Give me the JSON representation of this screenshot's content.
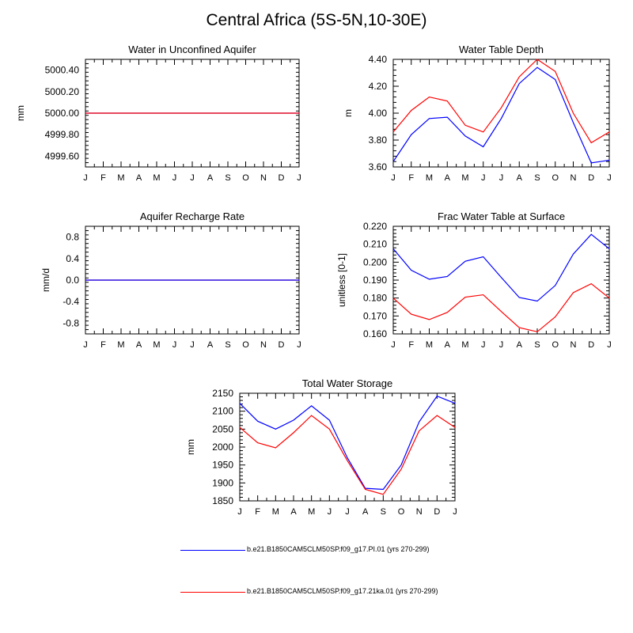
{
  "figure": {
    "title": "Central Africa (5S-5N,10-30E)"
  },
  "legend": [
    {
      "label": "b.e21.B1850CAM5CLM50SP.f09_g17.PI.01 (yrs 270-299)",
      "color": "#0000ff"
    },
    {
      "label": "b.e21.B1850CAM5CLM50SP.f09_g17.21ka.01 (yrs 270-299)",
      "color": "#ff0000"
    }
  ],
  "chart_data": [
    {
      "type": "line",
      "title": "Water in Unconfined Aquifer",
      "ylabel": "mm",
      "xlabel": "",
      "x": [
        "J",
        "F",
        "M",
        "A",
        "M",
        "J",
        "J",
        "A",
        "S",
        "O",
        "N",
        "D",
        "J"
      ],
      "ylim": [
        4999.5,
        5000.5
      ],
      "yticks": [
        4999.6,
        4999.8,
        5000.0,
        5000.2,
        5000.4
      ],
      "yticklabels": [
        "4999.60",
        "4999.80",
        "5000.00",
        "5000.20",
        "5000.40"
      ],
      "series": [
        {
          "color": "#0000ff",
          "values": [
            5000,
            5000,
            5000,
            5000,
            5000,
            5000,
            5000,
            5000,
            5000,
            5000,
            5000,
            5000,
            5000
          ]
        },
        {
          "color": "#ff0000",
          "values": [
            5000,
            5000,
            5000,
            5000,
            5000,
            5000,
            5000,
            5000,
            5000,
            5000,
            5000,
            5000,
            5000
          ]
        }
      ]
    },
    {
      "type": "line",
      "title": "Water Table Depth",
      "ylabel": "m",
      "xlabel": "",
      "x": [
        "J",
        "F",
        "M",
        "A",
        "M",
        "J",
        "J",
        "A",
        "S",
        "O",
        "N",
        "D",
        "J"
      ],
      "ylim": [
        3.6,
        4.4
      ],
      "yticks": [
        3.6,
        3.8,
        4.0,
        4.2,
        4.4
      ],
      "yticklabels": [
        "3.60",
        "3.80",
        "4.00",
        "4.20",
        "4.40"
      ],
      "series": [
        {
          "color": "#0000ff",
          "values": [
            3.64,
            3.84,
            3.96,
            3.97,
            3.83,
            3.75,
            3.96,
            4.22,
            4.34,
            4.25,
            3.93,
            3.63,
            3.65
          ]
        },
        {
          "color": "#ff0000",
          "values": [
            3.86,
            4.02,
            4.12,
            4.09,
            3.91,
            3.86,
            4.04,
            4.27,
            4.4,
            4.31,
            4.0,
            3.78,
            3.86
          ]
        }
      ]
    },
    {
      "type": "line",
      "title": "Aquifer Recharge Rate",
      "ylabel": "mm/d",
      "xlabel": "",
      "x": [
        "J",
        "F",
        "M",
        "A",
        "M",
        "J",
        "J",
        "A",
        "S",
        "O",
        "N",
        "D",
        "J"
      ],
      "ylim": [
        -1.0,
        1.0
      ],
      "yticks": [
        -0.8,
        -0.4,
        0.0,
        0.4,
        0.8
      ],
      "yticklabels": [
        "-0.8",
        "-0.4",
        "0.0",
        "0.4",
        "0.8"
      ],
      "series": [
        {
          "color": "#ff0000",
          "values": [
            0,
            0,
            0,
            0,
            0,
            0,
            0,
            0,
            0,
            0,
            0,
            0,
            0
          ]
        },
        {
          "color": "#0000ff",
          "values": [
            0,
            0,
            0,
            0,
            0,
            0,
            0,
            0,
            0,
            0,
            0,
            0,
            0
          ]
        }
      ]
    },
    {
      "type": "line",
      "title": "Frac Water Table at Surface",
      "ylabel": "unitless [0-1]",
      "xlabel": "",
      "x": [
        "J",
        "F",
        "M",
        "A",
        "M",
        "J",
        "J",
        "A",
        "S",
        "O",
        "N",
        "D",
        "J"
      ],
      "ylim": [
        0.16,
        0.22
      ],
      "yticks": [
        0.16,
        0.17,
        0.18,
        0.19,
        0.2,
        0.21,
        0.22
      ],
      "yticklabels": [
        "0.160",
        "0.170",
        "0.180",
        "0.190",
        "0.200",
        "0.210",
        "0.220"
      ],
      "series": [
        {
          "color": "#0000ff",
          "values": [
            0.2075,
            0.1955,
            0.1905,
            0.192,
            0.2005,
            0.203,
            0.1915,
            0.1803,
            0.1783,
            0.187,
            0.2045,
            0.2155,
            0.2075
          ]
        },
        {
          "color": "#ff0000",
          "values": [
            0.18,
            0.171,
            0.168,
            0.172,
            0.1805,
            0.1818,
            0.1725,
            0.1635,
            0.1612,
            0.1695,
            0.183,
            0.188,
            0.18
          ]
        }
      ]
    },
    {
      "type": "line",
      "title": "Total Water Storage",
      "ylabel": "mm",
      "xlabel": "",
      "x": [
        "J",
        "F",
        "M",
        "A",
        "M",
        "J",
        "J",
        "A",
        "S",
        "O",
        "N",
        "D",
        "J"
      ],
      "ylim": [
        1850,
        2150
      ],
      "yticks": [
        1850,
        1900,
        1950,
        2000,
        2050,
        2100,
        2150
      ],
      "yticklabels": [
        "1850",
        "1900",
        "1950",
        "2000",
        "2050",
        "2100",
        "2150"
      ],
      "series": [
        {
          "color": "#0000ff",
          "values": [
            2122,
            2072,
            2050,
            2075,
            2115,
            2075,
            1970,
            1885,
            1882,
            1950,
            2070,
            2142,
            2122
          ]
        },
        {
          "color": "#ff0000",
          "values": [
            2055,
            2012,
            1998,
            2040,
            2088,
            2050,
            1962,
            1882,
            1868,
            1938,
            2045,
            2088,
            2055
          ]
        }
      ]
    }
  ]
}
